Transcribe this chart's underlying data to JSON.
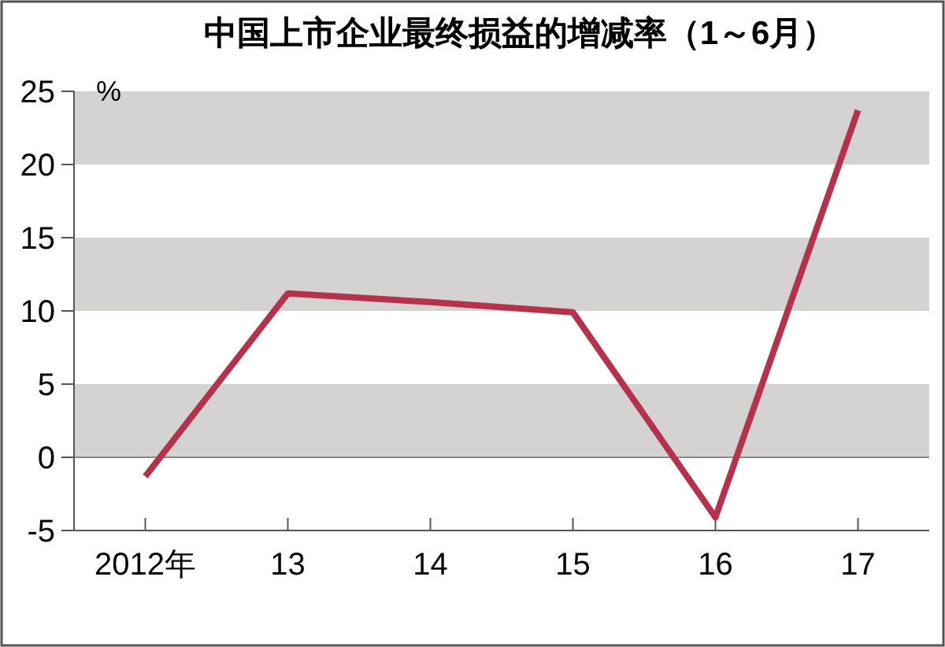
{
  "chart_data": {
    "type": "line",
    "title": "中国上市企业最终损益的增减率（1～6月）",
    "ylabel": "%",
    "categories": [
      "2012年",
      "13",
      "14",
      "15",
      "16",
      "17"
    ],
    "series": [
      {
        "color": "#b5324c",
        "values": [
          -1.3,
          11.2,
          10.6,
          9.9,
          -4.1,
          23.7
        ]
      }
    ],
    "ylim": [
      -5,
      25
    ],
    "yticks": [
      -5,
      0,
      5,
      10,
      15,
      20,
      25
    ],
    "bands": [
      {
        "axis": "y",
        "from": 20,
        "to": 25,
        "color": "#d4d3d2"
      },
      {
        "axis": "y",
        "from": 10,
        "to": 15,
        "color": "#d4d3d2"
      },
      {
        "axis": "y",
        "from": 0,
        "to": 5,
        "color": "#d4d3d2"
      }
    ],
    "marker": "none"
  }
}
